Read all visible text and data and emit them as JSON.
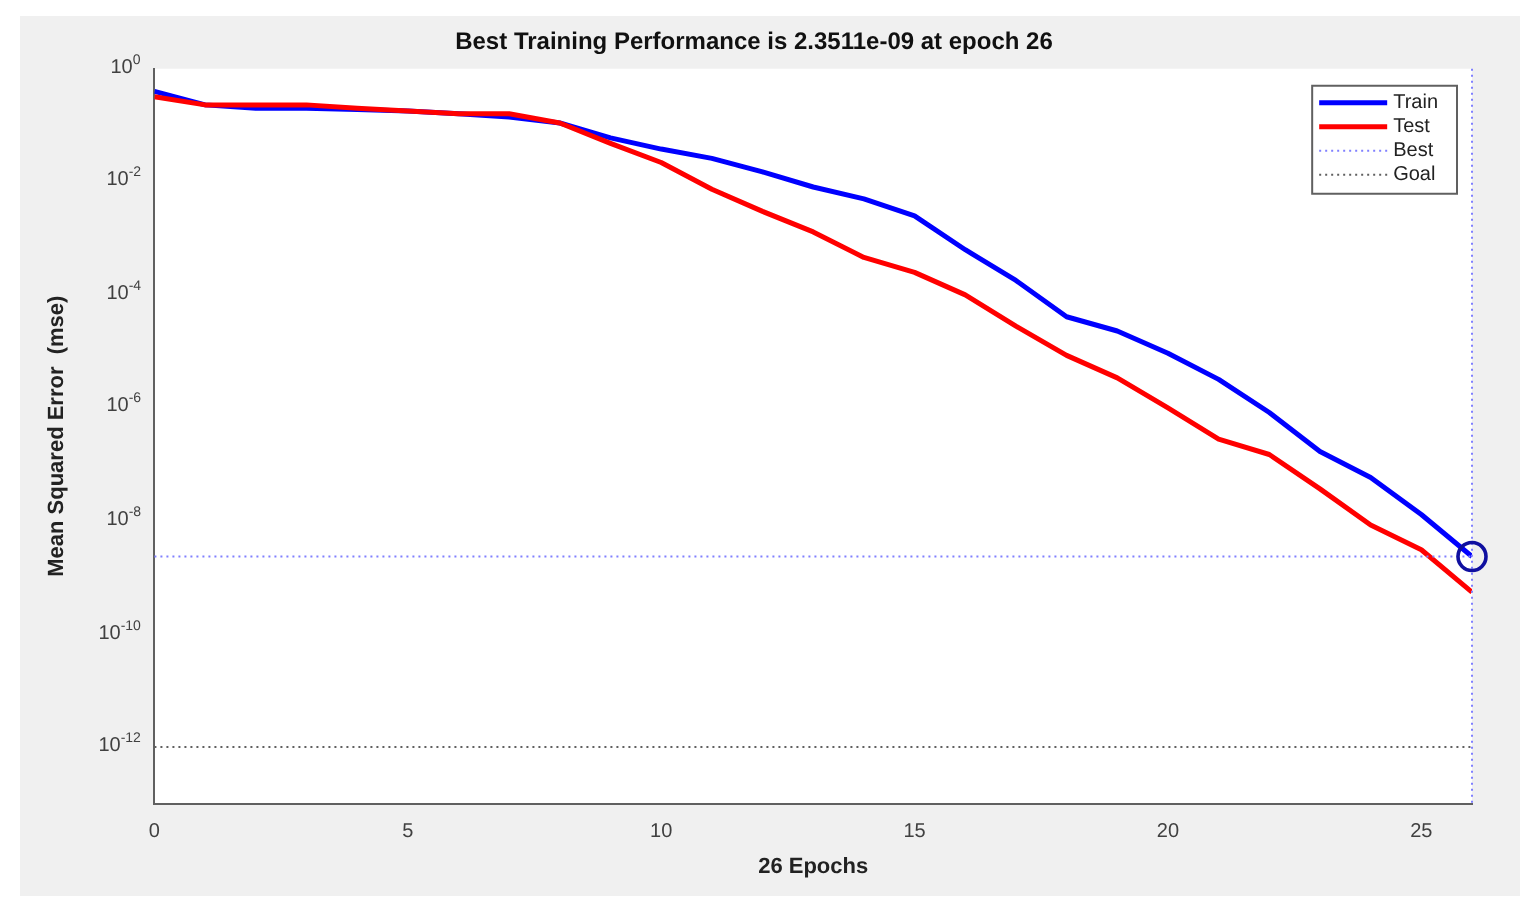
{
  "chart_data": {
    "type": "line",
    "title": "Best Training Performance is 2.3511e-09 at epoch 26",
    "xlabel": "26 Epochs",
    "ylabel": "Mean Squared Error  (mse)",
    "x": [
      0,
      1,
      2,
      3,
      4,
      5,
      6,
      7,
      8,
      9,
      10,
      11,
      12,
      13,
      14,
      15,
      16,
      17,
      18,
      19,
      20,
      21,
      22,
      23,
      24,
      25,
      26
    ],
    "series": [
      {
        "name": "Train",
        "color": "#0000ff",
        "values": [
          0.4,
          0.23,
          0.2,
          0.2,
          0.19,
          0.18,
          0.16,
          0.14,
          0.11,
          0.06,
          0.038,
          0.026,
          0.015,
          0.0081,
          0.005,
          0.0025,
          0.00063,
          0.00018,
          4.1e-05,
          2.3e-05,
          9.3e-06,
          3.2e-06,
          8.3e-07,
          1.7e-07,
          5.9e-08,
          1.3e-08,
          2.3511e-09
        ]
      },
      {
        "name": "Test",
        "color": "#ff0000",
        "values": [
          0.32,
          0.23,
          0.23,
          0.23,
          0.2,
          0.18,
          0.16,
          0.16,
          0.11,
          0.048,
          0.022,
          0.0074,
          0.003,
          0.0013,
          0.00046,
          0.00025,
          0.0001,
          2.8e-05,
          8.5e-06,
          3.4e-06,
          1e-06,
          2.8e-07,
          1.5e-07,
          3.7e-08,
          8.5e-09,
          3.1e-09,
          5.5e-10
        ]
      }
    ],
    "ref_lines": [
      {
        "axis": "y",
        "value": 2.3511e-09,
        "label": "Best",
        "color": "#8080ff",
        "line_style": "dotted"
      },
      {
        "axis": "x",
        "value": 26,
        "color": "#8080ff",
        "line_style": "dotted"
      },
      {
        "axis": "y",
        "value": 1e-12,
        "label": "Goal",
        "color": "#606060",
        "line_style": "dotted"
      }
    ],
    "log": "y",
    "xlim": [
      0,
      26
    ],
    "xticks": [
      0,
      5,
      10,
      15,
      20,
      25
    ],
    "ylim": [
      1e-13,
      1
    ],
    "yticks": [
      {
        "value": 1,
        "label": "10$^{0}$"
      },
      {
        "value": 0.01,
        "label": "10$^{-2}$"
      },
      {
        "value": 0.0001,
        "label": "10$^{-4}$"
      },
      {
        "value": 1e-06,
        "label": "10$^{-6}$"
      },
      {
        "value": 1e-08,
        "label": "10$^{-8}$"
      },
      {
        "value": 1e-10,
        "label": "10$^{-10}$"
      },
      {
        "value": 1e-12,
        "label": "10$^{-12}$"
      }
    ],
    "grid": false,
    "legend": "top right",
    "line_style": "solid",
    "marker": "none"
  }
}
